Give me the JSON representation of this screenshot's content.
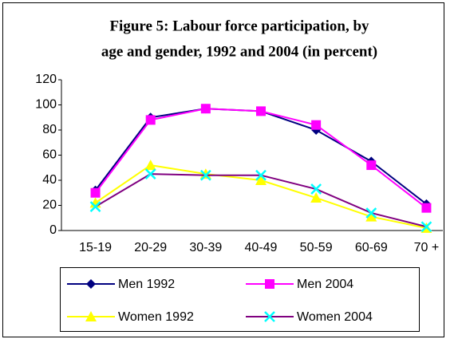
{
  "chart_data": {
    "type": "line",
    "title": [
      "Figure 5: Labour force participation, by",
      "age and gender, 1992 and 2004 (in percent)"
    ],
    "categories": [
      "15-19",
      "20-29",
      "30-39",
      "40-49",
      "50-59",
      "60-69",
      "70 +"
    ],
    "series": [
      {
        "name": "Men 1992",
        "color": "#000080",
        "marker": "diamond",
        "marker_color": "#000080",
        "values": [
          32,
          90,
          97,
          95,
          80,
          55,
          21
        ]
      },
      {
        "name": "Men 2004",
        "color": "#FF00FF",
        "marker": "square",
        "marker_color": "#FF00FF",
        "values": [
          30,
          88,
          97,
          95,
          84,
          52,
          18
        ]
      },
      {
        "name": "Women 1992",
        "color": "#FFFF00",
        "marker": "triangle",
        "marker_color": "#FFFF00",
        "values": [
          22,
          52,
          45,
          40,
          26,
          11,
          2
        ]
      },
      {
        "name": "Women 2004",
        "color": "#800080",
        "marker": "x",
        "marker_color": "#00FFFF",
        "values": [
          19,
          45,
          44,
          44,
          33,
          14,
          3
        ]
      }
    ],
    "ylim": [
      0,
      120
    ],
    "yticks": [
      0,
      20,
      40,
      60,
      80,
      100,
      120
    ],
    "grid": false,
    "legend": "bottom"
  }
}
